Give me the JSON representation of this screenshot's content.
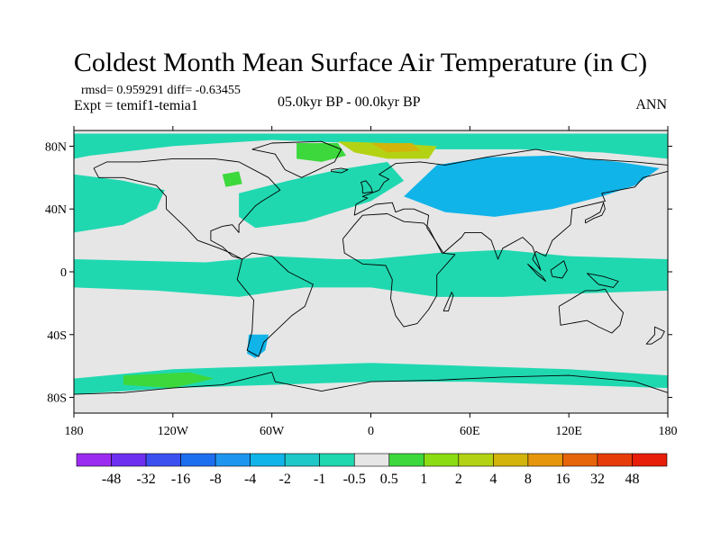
{
  "title": "Coldest Month Mean Surface Air Temperature (in C)",
  "stats": "rmsd= 0.959291 diff= -0.63455",
  "experiment": "Expt = temif1-temia1",
  "period": "05.0kyr BP - 00.0kyr BP",
  "season": "ANN",
  "map": {
    "lon_range": [
      -180,
      180
    ],
    "lat_range": [
      -90,
      90
    ],
    "ocean_fill": "#e6e6e6",
    "coastline_color": "#000000",
    "lon_ticks": [
      {
        "value": -180,
        "label": "180"
      },
      {
        "value": -120,
        "label": "120W"
      },
      {
        "value": -60,
        "label": "60W"
      },
      {
        "value": 0,
        "label": "0"
      },
      {
        "value": 60,
        "label": "60E"
      },
      {
        "value": 120,
        "label": "120E"
      },
      {
        "value": 180,
        "label": "180"
      }
    ],
    "lat_ticks": [
      {
        "value": 80,
        "label": "80N"
      },
      {
        "value": 40,
        "label": "40N"
      },
      {
        "value": 0,
        "label": "0"
      },
      {
        "value": -40,
        "label": "40S"
      },
      {
        "value": -80,
        "label": "80S"
      }
    ]
  },
  "colorbar": {
    "colors": [
      "#9b2bf0",
      "#6e2ff0",
      "#3c50f0",
      "#1e6ef0",
      "#1e96f0",
      "#10b4e8",
      "#1ec8c8",
      "#20d8b0",
      "#e6e6e6",
      "#3cd83c",
      "#8cdc14",
      "#b4d214",
      "#d2b40a",
      "#e6960a",
      "#e6640a",
      "#e63c0a",
      "#e61e0a"
    ],
    "labels": [
      "-48",
      "-32",
      "-16",
      "-8",
      "-4",
      "-2",
      "-1",
      "-0.5",
      "0.5",
      "1",
      "2",
      "4",
      "8",
      "16",
      "32",
      "48"
    ]
  },
  "regions": [
    {
      "name": "north-pacific-band",
      "level": "-1",
      "color": "#20d8b0",
      "points": [
        [
          -180,
          62
        ],
        [
          -150,
          58
        ],
        [
          -125,
          52
        ],
        [
          -130,
          40
        ],
        [
          -150,
          30
        ],
        [
          -180,
          25
        ]
      ]
    },
    {
      "name": "north-atlantic-band",
      "level": "-1",
      "color": "#20d8b0",
      "points": [
        [
          -80,
          50
        ],
        [
          -50,
          58
        ],
        [
          -20,
          65
        ],
        [
          10,
          70
        ],
        [
          20,
          58
        ],
        [
          0,
          45
        ],
        [
          -40,
          32
        ],
        [
          -70,
          28
        ],
        [
          -80,
          35
        ]
      ]
    },
    {
      "name": "northern-asia",
      "level": "-2",
      "color": "#10b4e8",
      "points": [
        [
          20,
          48
        ],
        [
          40,
          68
        ],
        [
          70,
          73
        ],
        [
          110,
          74
        ],
        [
          150,
          70
        ],
        [
          175,
          66
        ],
        [
          160,
          55
        ],
        [
          140,
          48
        ],
        [
          110,
          40
        ],
        [
          75,
          35
        ],
        [
          45,
          38
        ]
      ]
    },
    {
      "name": "arctic-ocean",
      "level": "-1",
      "color": "#20d8b0",
      "points": [
        [
          -180,
          88
        ],
        [
          180,
          88
        ],
        [
          180,
          72
        ],
        [
          140,
          76
        ],
        [
          90,
          78
        ],
        [
          40,
          78
        ],
        [
          20,
          80
        ],
        [
          -10,
          82
        ],
        [
          -60,
          84
        ],
        [
          -120,
          80
        ],
        [
          -170,
          74
        ],
        [
          -180,
          72
        ]
      ]
    },
    {
      "name": "equatorial-band",
      "level": "-1",
      "color": "#20d8b0",
      "points": [
        [
          -180,
          8
        ],
        [
          -100,
          6
        ],
        [
          -60,
          10
        ],
        [
          -20,
          8
        ],
        [
          0,
          8
        ],
        [
          40,
          12
        ],
        [
          80,
          14
        ],
        [
          120,
          10
        ],
        [
          180,
          8
        ],
        [
          180,
          -12
        ],
        [
          120,
          -14
        ],
        [
          80,
          -16
        ],
        [
          40,
          -16
        ],
        [
          0,
          -10
        ],
        [
          -40,
          -10
        ],
        [
          -80,
          -16
        ],
        [
          -130,
          -12
        ],
        [
          -180,
          -10
        ]
      ]
    },
    {
      "name": "southern-ocean-band",
      "level": "-1",
      "color": "#20d8b0",
      "points": [
        [
          -180,
          -68
        ],
        [
          -120,
          -62
        ],
        [
          -60,
          -60
        ],
        [
          0,
          -58
        ],
        [
          60,
          -60
        ],
        [
          120,
          -62
        ],
        [
          180,
          -66
        ],
        [
          180,
          -74
        ],
        [
          120,
          -72
        ],
        [
          60,
          -70
        ],
        [
          0,
          -70
        ],
        [
          -60,
          -72
        ],
        [
          -120,
          -74
        ],
        [
          -180,
          -78
        ]
      ]
    },
    {
      "name": "south-america-tip",
      "level": "-2",
      "color": "#10b4e8",
      "points": [
        [
          -74,
          -40
        ],
        [
          -62,
          -40
        ],
        [
          -64,
          -50
        ],
        [
          -70,
          -55
        ],
        [
          -75,
          -52
        ]
      ]
    },
    {
      "name": "greenland-warm",
      "level": "1",
      "color": "#3cd83c",
      "points": [
        [
          -45,
          82
        ],
        [
          -20,
          82
        ],
        [
          -15,
          74
        ],
        [
          -30,
          70
        ],
        [
          -45,
          72
        ]
      ]
    },
    {
      "name": "svalbard-barents-warm",
      "level": "4",
      "color": "#b4d214",
      "points": [
        [
          -20,
          83
        ],
        [
          10,
          82
        ],
        [
          40,
          80
        ],
        [
          35,
          72
        ],
        [
          10,
          72
        ],
        [
          -10,
          76
        ]
      ]
    },
    {
      "name": "barents-warmest",
      "level": "8",
      "color": "#d2b40a",
      "points": [
        [
          0,
          82
        ],
        [
          25,
          82
        ],
        [
          30,
          77
        ],
        [
          10,
          76
        ]
      ]
    },
    {
      "name": "amundsen-sea-warm",
      "level": "1",
      "color": "#3cd83c",
      "points": [
        [
          -150,
          -66
        ],
        [
          -110,
          -64
        ],
        [
          -95,
          -68
        ],
        [
          -120,
          -74
        ],
        [
          -150,
          -72
        ]
      ]
    },
    {
      "name": "hudson-bay-warm",
      "level": "1",
      "color": "#3cd83c",
      "points": [
        [
          -90,
          62
        ],
        [
          -80,
          64
        ],
        [
          -78,
          56
        ],
        [
          -88,
          54
        ]
      ]
    }
  ],
  "coastlines": [
    {
      "name": "north-america",
      "points": [
        [
          -168,
          66
        ],
        [
          -160,
          70
        ],
        [
          -140,
          70
        ],
        [
          -120,
          72
        ],
        [
          -95,
          72
        ],
        [
          -80,
          70
        ],
        [
          -62,
          60
        ],
        [
          -55,
          52
        ],
        [
          -66,
          45
        ],
        [
          -70,
          42
        ],
        [
          -75,
          36
        ],
        [
          -80,
          30
        ],
        [
          -80,
          25
        ],
        [
          -84,
          30
        ],
        [
          -90,
          29
        ],
        [
          -97,
          26
        ],
        [
          -97,
          20
        ],
        [
          -90,
          16
        ],
        [
          -84,
          10
        ],
        [
          -78,
          8
        ],
        [
          -85,
          12
        ],
        [
          -92,
          15
        ],
        [
          -105,
          20
        ],
        [
          -112,
          28
        ],
        [
          -117,
          33
        ],
        [
          -124,
          40
        ],
        [
          -124,
          48
        ],
        [
          -130,
          55
        ],
        [
          -150,
          60
        ],
        [
          -165,
          60
        ],
        [
          -168,
          66
        ]
      ]
    },
    {
      "name": "south-america",
      "points": [
        [
          -78,
          8
        ],
        [
          -72,
          12
        ],
        [
          -60,
          10
        ],
        [
          -50,
          0
        ],
        [
          -35,
          -8
        ],
        [
          -40,
          -22
        ],
        [
          -48,
          -28
        ],
        [
          -58,
          -38
        ],
        [
          -65,
          -45
        ],
        [
          -68,
          -54
        ],
        [
          -75,
          -50
        ],
        [
          -72,
          -38
        ],
        [
          -71,
          -18
        ],
        [
          -81,
          -5
        ],
        [
          -78,
          8
        ]
      ]
    },
    {
      "name": "greenland",
      "points": [
        [
          -72,
          78
        ],
        [
          -60,
          82
        ],
        [
          -30,
          83
        ],
        [
          -18,
          78
        ],
        [
          -22,
          70
        ],
        [
          -42,
          60
        ],
        [
          -52,
          65
        ],
        [
          -58,
          75
        ],
        [
          -72,
          78
        ]
      ]
    },
    {
      "name": "africa",
      "points": [
        [
          -17,
          21
        ],
        [
          -10,
          30
        ],
        [
          -5,
          36
        ],
        [
          10,
          37
        ],
        [
          20,
          32
        ],
        [
          32,
          31
        ],
        [
          35,
          28
        ],
        [
          43,
          12
        ],
        [
          51,
          11
        ],
        [
          40,
          -2
        ],
        [
          40,
          -15
        ],
        [
          35,
          -24
        ],
        [
          28,
          -33
        ],
        [
          20,
          -35
        ],
        [
          15,
          -28
        ],
        [
          12,
          -17
        ],
        [
          13,
          -5
        ],
        [
          9,
          4
        ],
        [
          -5,
          5
        ],
        [
          -16,
          12
        ],
        [
          -17,
          21
        ]
      ]
    },
    {
      "name": "eurasia",
      "points": [
        [
          -10,
          36
        ],
        [
          -9,
          43
        ],
        [
          -2,
          47
        ],
        [
          -5,
          48
        ],
        [
          5,
          52
        ],
        [
          8,
          57
        ],
        [
          11,
          59
        ],
        [
          5,
          62
        ],
        [
          15,
          69
        ],
        [
          30,
          70
        ],
        [
          45,
          68
        ],
        [
          70,
          73
        ],
        [
          100,
          78
        ],
        [
          130,
          72
        ],
        [
          160,
          70
        ],
        [
          180,
          68
        ],
        [
          180,
          64
        ],
        [
          165,
          60
        ],
        [
          160,
          54
        ],
        [
          140,
          50
        ],
        [
          142,
          45
        ],
        [
          130,
          42
        ],
        [
          122,
          40
        ],
        [
          121,
          30
        ],
        [
          110,
          20
        ],
        [
          106,
          10
        ],
        [
          100,
          13
        ],
        [
          98,
          8
        ],
        [
          103,
          1
        ],
        [
          98,
          16
        ],
        [
          92,
          22
        ],
        [
          80,
          15
        ],
        [
          77,
          8
        ],
        [
          73,
          20
        ],
        [
          67,
          25
        ],
        [
          57,
          25
        ],
        [
          55,
          22
        ],
        [
          44,
          12
        ],
        [
          34,
          28
        ],
        [
          35,
          36
        ],
        [
          26,
          40
        ],
        [
          20,
          40
        ],
        [
          15,
          38
        ],
        [
          13,
          44
        ],
        [
          3,
          43
        ],
        [
          -10,
          36
        ]
      ]
    },
    {
      "name": "australia",
      "points": [
        [
          114,
          -22
        ],
        [
          122,
          -17
        ],
        [
          130,
          -12
        ],
        [
          137,
          -12
        ],
        [
          142,
          -11
        ],
        [
          146,
          -18
        ],
        [
          153,
          -26
        ],
        [
          151,
          -34
        ],
        [
          146,
          -39
        ],
        [
          138,
          -35
        ],
        [
          131,
          -31
        ],
        [
          115,
          -34
        ],
        [
          114,
          -22
        ]
      ]
    },
    {
      "name": "antarctica",
      "points": [
        [
          -180,
          -78
        ],
        [
          -150,
          -77
        ],
        [
          -120,
          -74
        ],
        [
          -90,
          -72
        ],
        [
          -60,
          -64
        ],
        [
          -58,
          -70
        ],
        [
          -30,
          -76
        ],
        [
          0,
          -70
        ],
        [
          40,
          -69
        ],
        [
          80,
          -67
        ],
        [
          120,
          -66
        ],
        [
          160,
          -70
        ],
        [
          180,
          -77
        ]
      ]
    },
    {
      "name": "great-britain",
      "points": [
        [
          -5,
          50
        ],
        [
          1,
          51
        ],
        [
          0,
          54
        ],
        [
          -3,
          58
        ],
        [
          -6,
          57
        ],
        [
          -5,
          54
        ],
        [
          -5,
          50
        ]
      ]
    },
    {
      "name": "japan",
      "points": [
        [
          130,
          31
        ],
        [
          135,
          34
        ],
        [
          140,
          36
        ],
        [
          142,
          40
        ],
        [
          141,
          44
        ],
        [
          139,
          38
        ],
        [
          134,
          35
        ],
        [
          130,
          33
        ],
        [
          130,
          31
        ]
      ]
    },
    {
      "name": "madagascar",
      "points": [
        [
          44,
          -25
        ],
        [
          49,
          -13
        ],
        [
          50,
          -15
        ],
        [
          47,
          -25
        ],
        [
          44,
          -25
        ]
      ]
    },
    {
      "name": "new-zealand",
      "points": [
        [
          172,
          -35
        ],
        [
          178,
          -38
        ],
        [
          176,
          -42
        ],
        [
          170,
          -46
        ],
        [
          167,
          -46
        ],
        [
          172,
          -40
        ],
        [
          172,
          -35
        ]
      ]
    },
    {
      "name": "borneo",
      "points": [
        [
          109,
          1
        ],
        [
          117,
          7
        ],
        [
          119,
          1
        ],
        [
          116,
          -4
        ],
        [
          110,
          -3
        ],
        [
          109,
          1
        ]
      ]
    },
    {
      "name": "sumatra",
      "points": [
        [
          95,
          5
        ],
        [
          104,
          -3
        ],
        [
          106,
          -6
        ],
        [
          101,
          -2
        ],
        [
          95,
          5
        ]
      ]
    },
    {
      "name": "new-guinea",
      "points": [
        [
          131,
          -1
        ],
        [
          141,
          -3
        ],
        [
          150,
          -6
        ],
        [
          147,
          -10
        ],
        [
          138,
          -8
        ],
        [
          131,
          -1
        ]
      ]
    },
    {
      "name": "iceland",
      "points": [
        [
          -24,
          65
        ],
        [
          -18,
          66
        ],
        [
          -14,
          65
        ],
        [
          -18,
          63
        ],
        [
          -24,
          64
        ],
        [
          -24,
          65
        ]
      ]
    }
  ]
}
